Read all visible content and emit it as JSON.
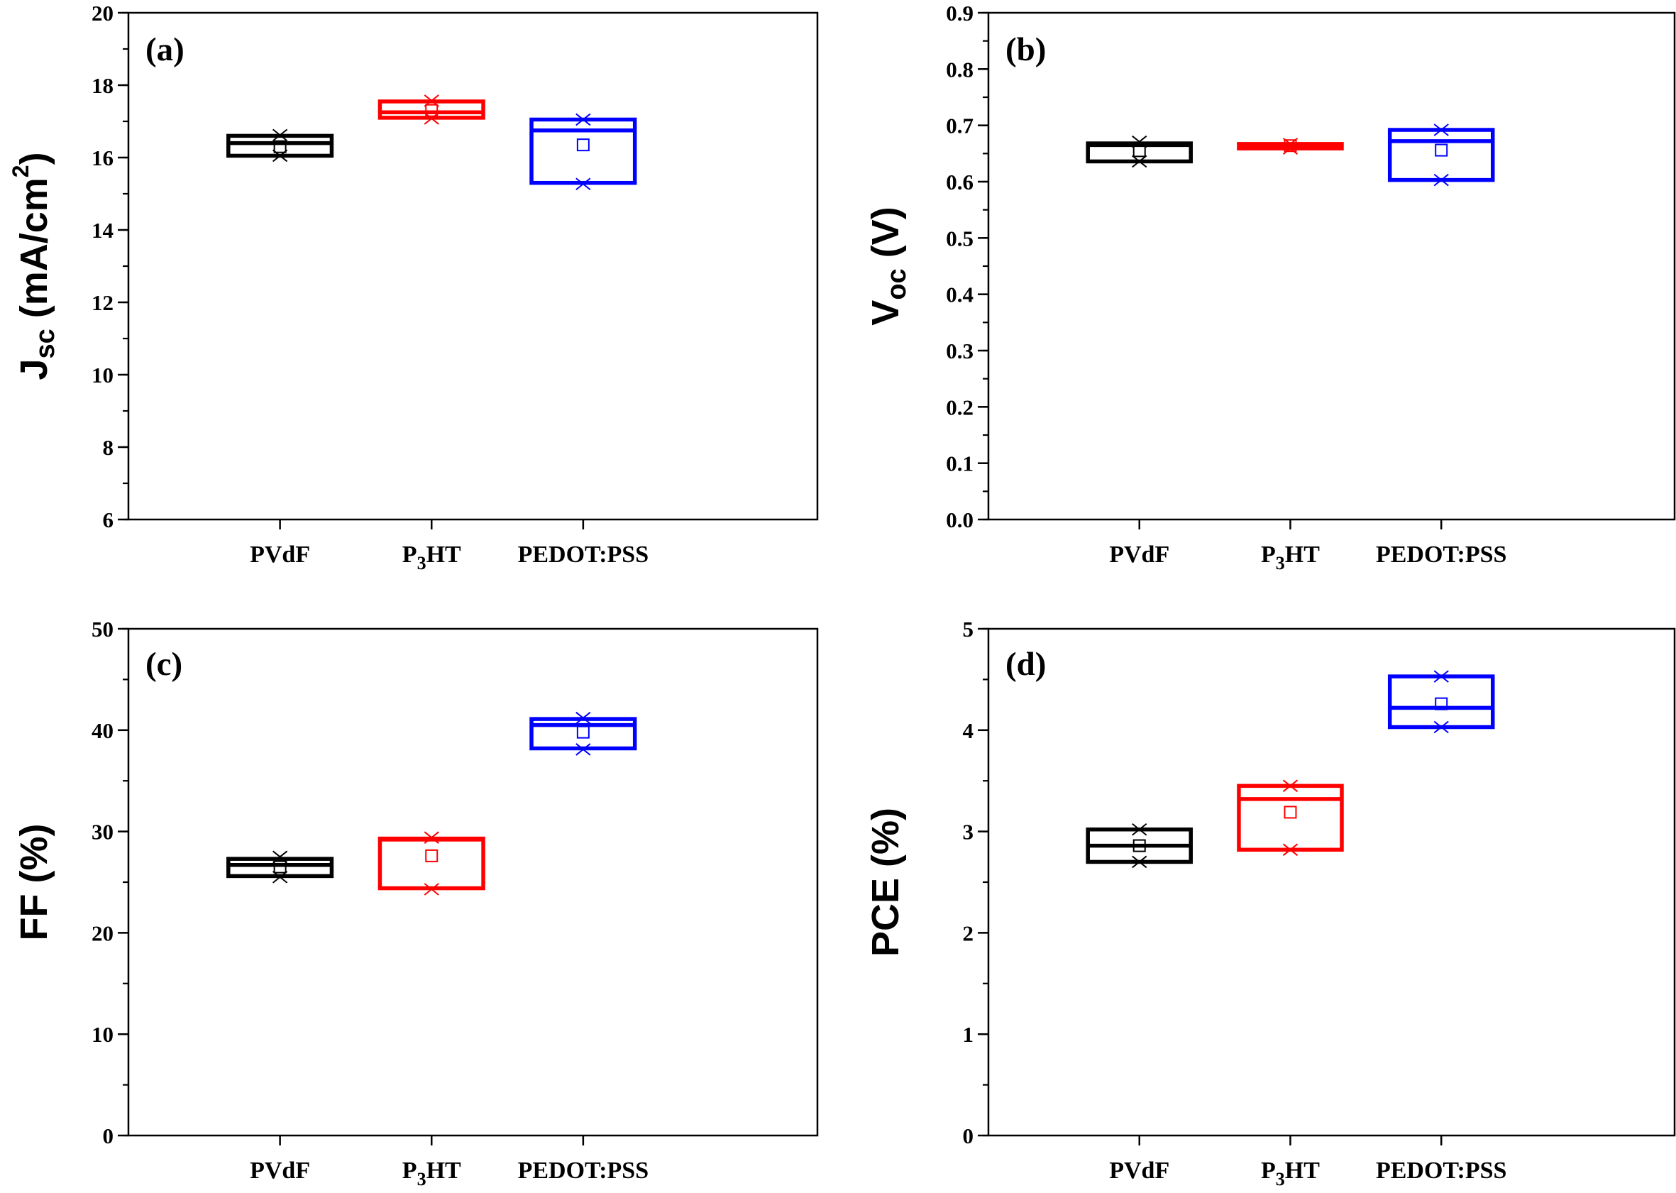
{
  "chart_data": [
    {
      "type": "box",
      "panel_label": "(a)",
      "ylabel": {
        "main": "J",
        "sub": "sc",
        "rest": " (mA/cm",
        "sup": "2",
        "end": ")"
      },
      "ylim": [
        6,
        20
      ],
      "major_ticks": [
        6,
        8,
        10,
        12,
        14,
        16,
        18,
        20
      ],
      "tick_labels": [
        "6",
        "8",
        "10",
        "12",
        "14",
        "16",
        "18",
        "20"
      ],
      "minor_step": 1,
      "categories": [
        {
          "name": "PVdF",
          "sub": ""
        },
        {
          "name": "P",
          "sub": "3",
          "rest": "HT"
        },
        {
          "name": "PEDOT:PSS",
          "sub": ""
        }
      ],
      "series": [
        {
          "color": "#000000",
          "q1": 16.05,
          "median": 16.4,
          "q3": 16.6,
          "mean": 16.3,
          "min": 16.05,
          "max": 16.62
        },
        {
          "color": "#ff0000",
          "q1": 17.1,
          "median": 17.25,
          "q3": 17.55,
          "mean": 17.3,
          "min": 17.08,
          "max": 17.57
        },
        {
          "color": "#0000ff",
          "q1": 15.3,
          "median": 16.75,
          "q3": 17.05,
          "mean": 16.35,
          "min": 15.27,
          "max": 17.05
        }
      ]
    },
    {
      "type": "box",
      "panel_label": "(b)",
      "ylabel": {
        "main": "V",
        "sub": "oc",
        "rest": " (V)",
        "sup": "",
        "end": ""
      },
      "ylim": [
        0,
        0.9
      ],
      "major_ticks": [
        0,
        0.1,
        0.2,
        0.3,
        0.4,
        0.5,
        0.6,
        0.7,
        0.8,
        0.9
      ],
      "tick_labels": [
        "0.0",
        "0.1",
        "0.2",
        "0.3",
        "0.4",
        "0.5",
        "0.6",
        "0.7",
        "0.8",
        "0.9"
      ],
      "minor_step": 0.05,
      "categories": [
        {
          "name": "PVdF",
          "sub": ""
        },
        {
          "name": "P",
          "sub": "3",
          "rest": "HT"
        },
        {
          "name": "PEDOT:PSS",
          "sub": ""
        }
      ],
      "series": [
        {
          "color": "#000000",
          "q1": 0.636,
          "median": 0.665,
          "q3": 0.668,
          "mean": 0.655,
          "min": 0.636,
          "max": 0.671
        },
        {
          "color": "#ff0000",
          "q1": 0.659,
          "median": 0.664,
          "q3": 0.667,
          "mean": 0.664,
          "min": 0.659,
          "max": 0.667
        },
        {
          "color": "#0000ff",
          "q1": 0.603,
          "median": 0.672,
          "q3": 0.692,
          "mean": 0.656,
          "min": 0.603,
          "max": 0.692
        }
      ]
    },
    {
      "type": "box",
      "panel_label": "(c)",
      "ylabel": {
        "main": "FF",
        "sub": "",
        "rest": " (%)",
        "sup": "",
        "end": ""
      },
      "ylim": [
        0,
        50
      ],
      "major_ticks": [
        0,
        10,
        20,
        30,
        40,
        50
      ],
      "tick_labels": [
        "0",
        "10",
        "20",
        "30",
        "40",
        "50"
      ],
      "minor_step": 5,
      "categories": [
        {
          "name": "PVdF",
          "sub": ""
        },
        {
          "name": "P",
          "sub": "3",
          "rest": "HT"
        },
        {
          "name": "PEDOT:PSS",
          "sub": ""
        }
      ],
      "series": [
        {
          "color": "#000000",
          "q1": 25.6,
          "median": 26.7,
          "q3": 27.3,
          "mean": 26.5,
          "min": 25.5,
          "max": 27.5
        },
        {
          "color": "#ff0000",
          "q1": 24.4,
          "median": 29.2,
          "q3": 29.3,
          "mean": 27.6,
          "min": 24.3,
          "max": 29.4
        },
        {
          "color": "#0000ff",
          "q1": 38.2,
          "median": 40.5,
          "q3": 41.1,
          "mean": 39.8,
          "min": 38.1,
          "max": 41.2
        }
      ]
    },
    {
      "type": "box",
      "panel_label": "(d)",
      "ylabel": {
        "main": "PCE",
        "sub": "",
        "rest": " (%)",
        "sup": "",
        "end": ""
      },
      "ylim": [
        0,
        5
      ],
      "major_ticks": [
        0,
        1,
        2,
        3,
        4,
        5
      ],
      "tick_labels": [
        "0",
        "1",
        "2",
        "3",
        "4",
        "5"
      ],
      "minor_step": 0.5,
      "categories": [
        {
          "name": "PVdF",
          "sub": ""
        },
        {
          "name": "P",
          "sub": "3",
          "rest": "HT"
        },
        {
          "name": "PEDOT:PSS",
          "sub": ""
        }
      ],
      "series": [
        {
          "color": "#000000",
          "q1": 2.7,
          "median": 2.86,
          "q3": 3.02,
          "mean": 2.86,
          "min": 2.7,
          "max": 3.02
        },
        {
          "color": "#ff0000",
          "q1": 2.82,
          "median": 3.32,
          "q3": 3.45,
          "mean": 3.19,
          "min": 2.82,
          "max": 3.45
        },
        {
          "color": "#0000ff",
          "q1": 4.03,
          "median": 4.22,
          "q3": 4.53,
          "mean": 4.26,
          "min": 4.03,
          "max": 4.53
        }
      ]
    }
  ]
}
